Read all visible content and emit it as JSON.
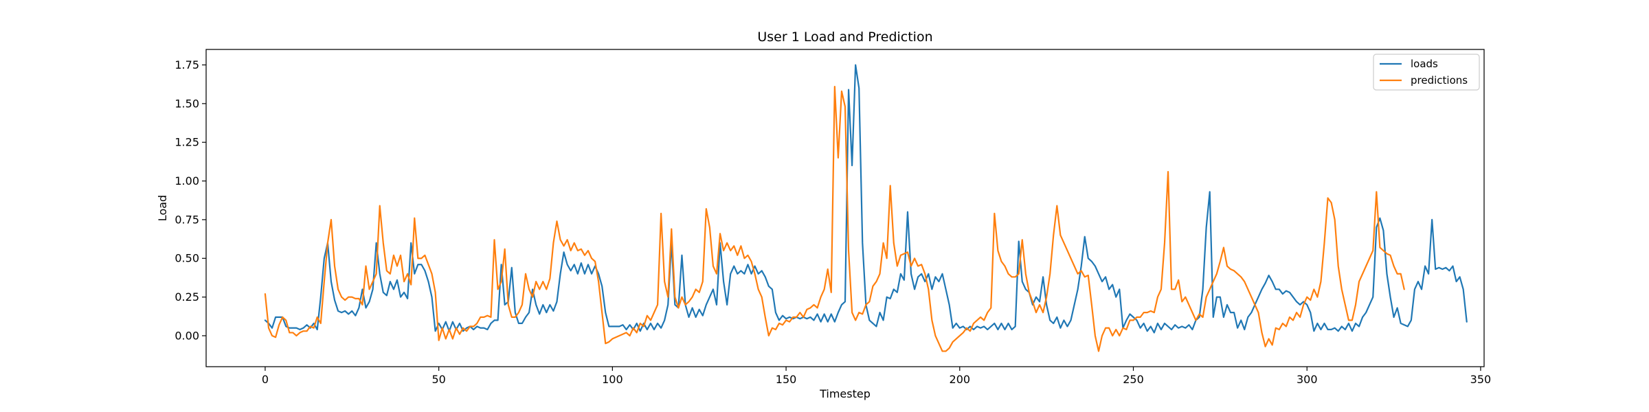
{
  "chart_data": {
    "type": "line",
    "title": "User 1 Load and Prediction",
    "xlabel": "Timestep",
    "ylabel": "Load",
    "xlim": [
      -17,
      351
    ],
    "ylim": [
      -0.2,
      1.85
    ],
    "xticks": [
      0,
      50,
      100,
      150,
      200,
      250,
      300,
      350
    ],
    "yticks": [
      0.0,
      0.25,
      0.5,
      0.75,
      1.0,
      1.25,
      1.5,
      1.75
    ],
    "ytick_labels": [
      "0.00",
      "0.25",
      "0.50",
      "0.75",
      "1.00",
      "1.25",
      "1.50",
      "1.75"
    ],
    "grid": false,
    "legend_position": "top-right",
    "series": [
      {
        "name": "loads",
        "color": "#1f77b4",
        "start_x": 0,
        "values": [
          0.1,
          0.08,
          0.05,
          0.12,
          0.12,
          0.12,
          0.06,
          0.05,
          0.05,
          0.05,
          0.04,
          0.05,
          0.07,
          0.05,
          0.08,
          0.04,
          0.25,
          0.5,
          0.6,
          0.35,
          0.23,
          0.16,
          0.15,
          0.16,
          0.14,
          0.16,
          0.13,
          0.18,
          0.3,
          0.18,
          0.22,
          0.3,
          0.6,
          0.4,
          0.28,
          0.26,
          0.35,
          0.3,
          0.36,
          0.25,
          0.28,
          0.24,
          0.6,
          0.4,
          0.46,
          0.46,
          0.42,
          0.35,
          0.25,
          0.03,
          0.08,
          0.04,
          0.09,
          0.03,
          0.09,
          0.04,
          0.08,
          0.03,
          0.05,
          0.06,
          0.04,
          0.06,
          0.05,
          0.05,
          0.04,
          0.08,
          0.1,
          0.1,
          0.46,
          0.2,
          0.22,
          0.44,
          0.15,
          0.08,
          0.08,
          0.12,
          0.15,
          0.3,
          0.2,
          0.14,
          0.2,
          0.15,
          0.2,
          0.16,
          0.22,
          0.4,
          0.54,
          0.46,
          0.42,
          0.46,
          0.4,
          0.47,
          0.4,
          0.46,
          0.4,
          0.45,
          0.4,
          0.32,
          0.15,
          0.06,
          0.06,
          0.06,
          0.06,
          0.07,
          0.04,
          0.07,
          0.04,
          0.08,
          0.03,
          0.08,
          0.04,
          0.08,
          0.04,
          0.08,
          0.05,
          0.1,
          0.2,
          0.6,
          0.2,
          0.18,
          0.52,
          0.2,
          0.12,
          0.18,
          0.12,
          0.17,
          0.13,
          0.2,
          0.25,
          0.3,
          0.2,
          0.6,
          0.35,
          0.2,
          0.4,
          0.45,
          0.4,
          0.42,
          0.4,
          0.46,
          0.4,
          0.45,
          0.4,
          0.42,
          0.38,
          0.32,
          0.3,
          0.15,
          0.1,
          0.13,
          0.11,
          0.12,
          0.11,
          0.12,
          0.11,
          0.12,
          0.11,
          0.12,
          0.1,
          0.14,
          0.09,
          0.14,
          0.09,
          0.14,
          0.09,
          0.15,
          0.2,
          0.22,
          1.59,
          1.1,
          1.75,
          1.6,
          0.6,
          0.2,
          0.1,
          0.08,
          0.06,
          0.15,
          0.1,
          0.25,
          0.24,
          0.3,
          0.28,
          0.4,
          0.36,
          0.8,
          0.4,
          0.3,
          0.38,
          0.4,
          0.35,
          0.4,
          0.3,
          0.38,
          0.35,
          0.4,
          0.3,
          0.2,
          0.05,
          0.08,
          0.05,
          0.06,
          0.04,
          0.06,
          0.04,
          0.06,
          0.05,
          0.06,
          0.04,
          0.06,
          0.08,
          0.04,
          0.08,
          0.04,
          0.08,
          0.04,
          0.06,
          0.61,
          0.35,
          0.3,
          0.28,
          0.2,
          0.25,
          0.22,
          0.38,
          0.2,
          0.1,
          0.08,
          0.12,
          0.05,
          0.1,
          0.06,
          0.1,
          0.2,
          0.3,
          0.45,
          0.64,
          0.5,
          0.48,
          0.45,
          0.4,
          0.35,
          0.38,
          0.3,
          0.33,
          0.25,
          0.3,
          0.05,
          0.1,
          0.14,
          0.12,
          0.1,
          0.05,
          0.08,
          0.03,
          0.06,
          0.02,
          0.08,
          0.04,
          0.08,
          0.06,
          0.04,
          0.07,
          0.05,
          0.06,
          0.05,
          0.07,
          0.04,
          0.1,
          0.12,
          0.3,
          0.7,
          0.93,
          0.12,
          0.25,
          0.25,
          0.12,
          0.2,
          0.15,
          0.15,
          0.05,
          0.1,
          0.04,
          0.12,
          0.15,
          0.2,
          0.25,
          0.3,
          0.34,
          0.39,
          0.35,
          0.3,
          0.3,
          0.27,
          0.29,
          0.28,
          0.25,
          0.22,
          0.2,
          0.22,
          0.2,
          0.15,
          0.03,
          0.08,
          0.04,
          0.08,
          0.04,
          0.04,
          0.05,
          0.03,
          0.06,
          0.04,
          0.08,
          0.03,
          0.08,
          0.06,
          0.12,
          0.15,
          0.2,
          0.25,
          0.7,
          0.76,
          0.68,
          0.4,
          0.25,
          0.12,
          0.18,
          0.08,
          0.07,
          0.06,
          0.1,
          0.3,
          0.35,
          0.3,
          0.45,
          0.4,
          0.75,
          0.43,
          0.44,
          0.43,
          0.44,
          0.42,
          0.45,
          0.35,
          0.38,
          0.3,
          0.09
        ]
      },
      {
        "name": "predictions",
        "color": "#ff7f0e",
        "start_x": 0,
        "values": [
          0.27,
          0.05,
          0.0,
          -0.01,
          0.07,
          0.12,
          0.1,
          0.02,
          0.02,
          0.0,
          0.02,
          0.03,
          0.03,
          0.06,
          0.05,
          0.12,
          0.08,
          0.35,
          0.6,
          0.75,
          0.45,
          0.3,
          0.25,
          0.23,
          0.25,
          0.25,
          0.24,
          0.24,
          0.2,
          0.45,
          0.3,
          0.35,
          0.4,
          0.84,
          0.6,
          0.42,
          0.4,
          0.52,
          0.45,
          0.52,
          0.35,
          0.4,
          0.33,
          0.76,
          0.5,
          0.5,
          0.52,
          0.46,
          0.4,
          0.28,
          -0.03,
          0.05,
          -0.02,
          0.04,
          -0.02,
          0.05,
          0.01,
          0.05,
          0.03,
          0.06,
          0.06,
          0.08,
          0.12,
          0.12,
          0.13,
          0.12,
          0.62,
          0.3,
          0.35,
          0.56,
          0.2,
          0.12,
          0.12,
          0.15,
          0.2,
          0.4,
          0.3,
          0.25,
          0.35,
          0.3,
          0.35,
          0.3,
          0.37,
          0.6,
          0.74,
          0.62,
          0.58,
          0.62,
          0.55,
          0.6,
          0.55,
          0.56,
          0.52,
          0.55,
          0.5,
          0.48,
          0.35,
          0.15,
          -0.05,
          -0.04,
          -0.02,
          -0.01,
          0.0,
          0.01,
          0.02,
          0.0,
          0.05,
          0.02,
          0.08,
          0.06,
          0.13,
          0.1,
          0.15,
          0.2,
          0.79,
          0.35,
          0.25,
          0.69,
          0.25,
          0.18,
          0.25,
          0.2,
          0.22,
          0.25,
          0.3,
          0.28,
          0.35,
          0.82,
          0.7,
          0.45,
          0.4,
          0.66,
          0.55,
          0.6,
          0.55,
          0.58,
          0.52,
          0.58,
          0.5,
          0.52,
          0.48,
          0.4,
          0.3,
          0.25,
          0.12,
          0.0,
          0.05,
          0.04,
          0.08,
          0.07,
          0.1,
          0.09,
          0.12,
          0.12,
          0.15,
          0.12,
          0.17,
          0.18,
          0.2,
          0.18,
          0.25,
          0.3,
          0.43,
          0.28,
          1.61,
          1.15,
          1.58,
          1.48,
          0.55,
          0.15,
          0.1,
          0.15,
          0.14,
          0.2,
          0.22,
          0.32,
          0.35,
          0.4,
          0.6,
          0.5,
          0.97,
          0.6,
          0.45,
          0.52,
          0.53,
          0.54,
          0.45,
          0.5,
          0.45,
          0.46,
          0.4,
          0.3,
          0.1,
          0.0,
          -0.05,
          -0.1,
          -0.1,
          -0.08,
          -0.04,
          -0.02,
          0.0,
          0.02,
          0.05,
          0.03,
          0.08,
          0.1,
          0.12,
          0.1,
          0.15,
          0.18,
          0.79,
          0.55,
          0.48,
          0.45,
          0.4,
          0.38,
          0.38,
          0.4,
          0.62,
          0.4,
          0.28,
          0.22,
          0.15,
          0.2,
          0.15,
          0.25,
          0.4,
          0.65,
          0.84,
          0.65,
          0.6,
          0.55,
          0.5,
          0.45,
          0.4,
          0.42,
          0.38,
          0.39,
          0.2,
          0.0,
          -0.1,
          0.0,
          0.05,
          0.05,
          0.0,
          0.04,
          0.0,
          0.05,
          0.04,
          0.1,
          0.1,
          0.12,
          0.12,
          0.15,
          0.15,
          0.16,
          0.15,
          0.25,
          0.3,
          0.6,
          1.06,
          0.3,
          0.3,
          0.36,
          0.22,
          0.25,
          0.2,
          0.15,
          0.1,
          0.14,
          0.12,
          0.25,
          0.3,
          0.35,
          0.4,
          0.48,
          0.57,
          0.45,
          0.43,
          0.42,
          0.4,
          0.38,
          0.35,
          0.3,
          0.25,
          0.2,
          0.15,
          0.02,
          -0.07,
          -0.02,
          -0.06,
          0.05,
          0.04,
          0.08,
          0.06,
          0.12,
          0.1,
          0.15,
          0.12,
          0.2,
          0.25,
          0.23,
          0.3,
          0.25,
          0.35,
          0.6,
          0.89,
          0.86,
          0.75,
          0.45,
          0.3,
          0.2,
          0.1,
          0.1,
          0.2,
          0.35,
          0.4,
          0.45,
          0.5,
          0.55,
          0.93,
          0.57,
          0.55,
          0.53,
          0.52,
          0.45,
          0.4,
          0.4,
          0.3
        ]
      }
    ]
  }
}
